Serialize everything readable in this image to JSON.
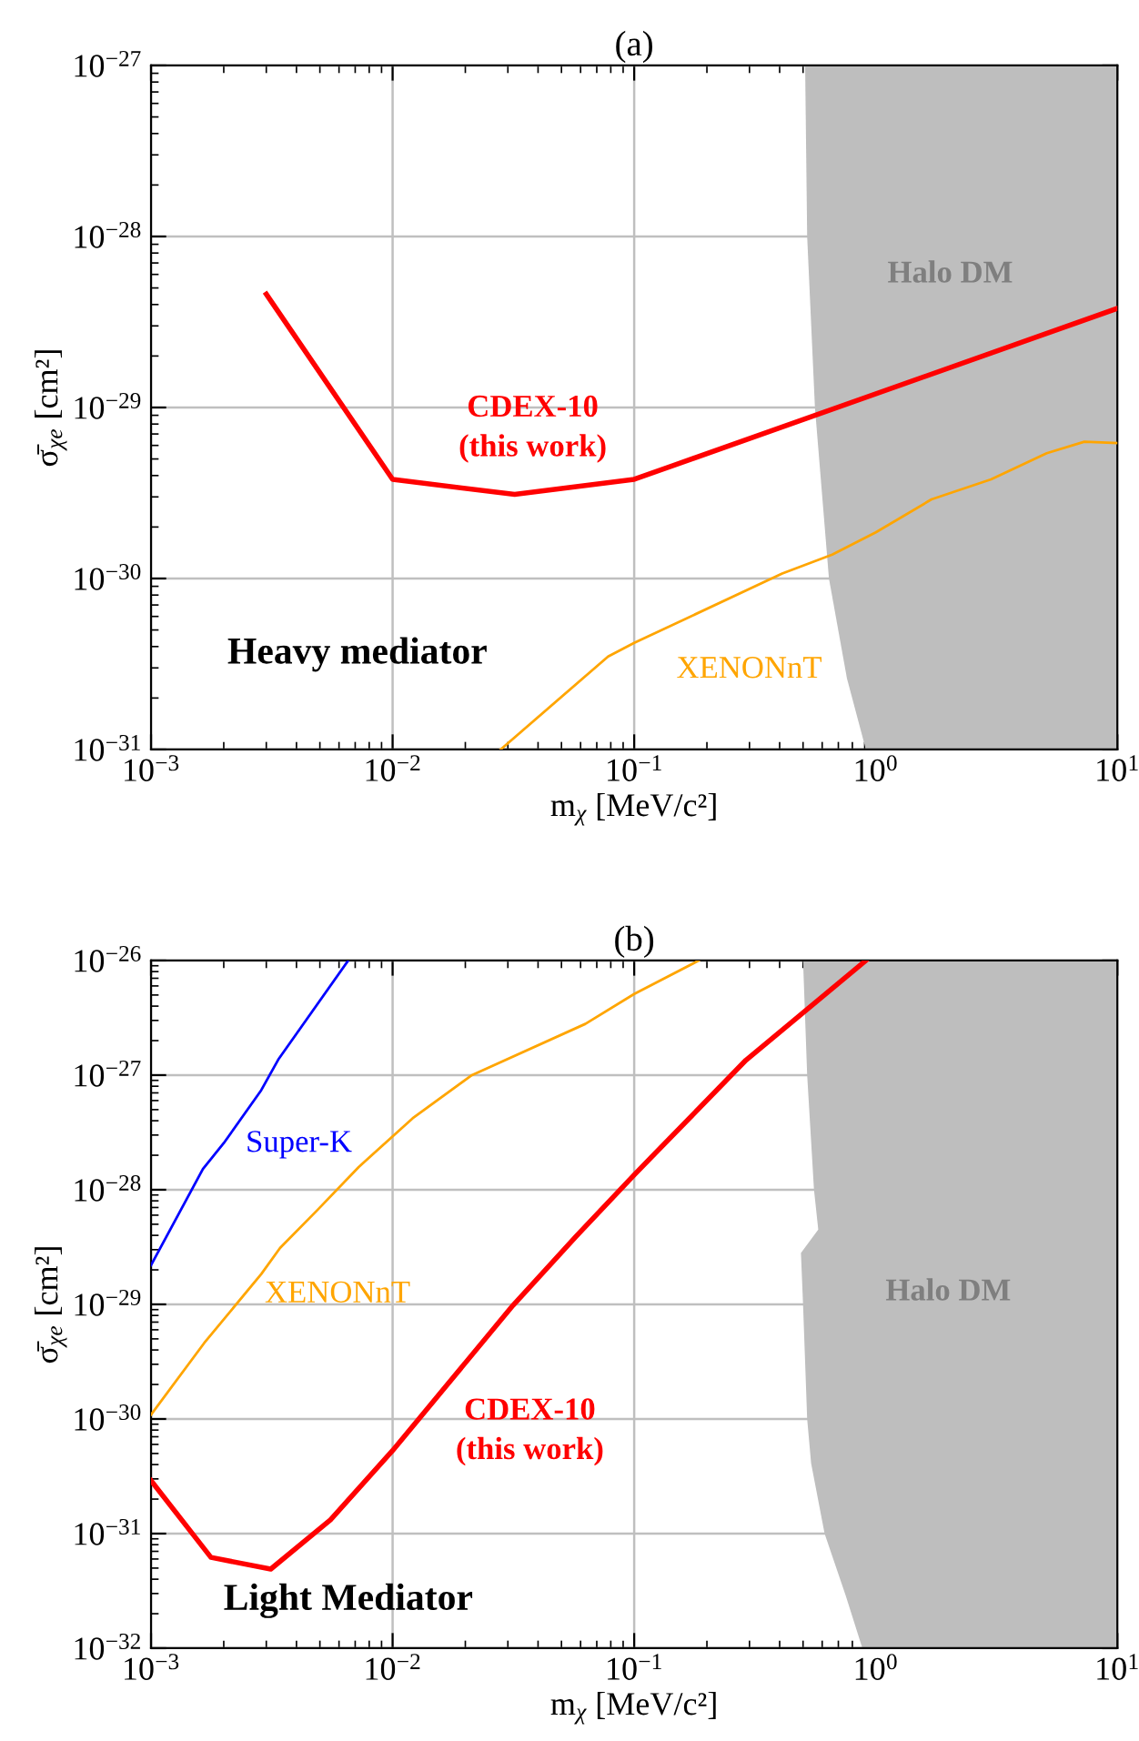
{
  "chart_data": [
    {
      "type": "line",
      "title": "(a)",
      "xlabel": "m$_{χ}$ [MeV/c²]",
      "ylabel": "σ̄$_{χe}$ [cm²]",
      "log": "xy",
      "grid": true,
      "xlim": [
        0.001,
        10
      ],
      "xticks": [
        {
          "value": 0.001,
          "label": "10$^{−3}$"
        },
        {
          "value": 0.01,
          "label": "10$^{−2}$"
        },
        {
          "value": 0.1,
          "label": "10$^{−1}$"
        },
        {
          "value": 1,
          "label": "10$^{0}$"
        },
        {
          "value": 10,
          "label": "10$^{1}$"
        }
      ],
      "ylim": [
        1e-31,
        1e-27
      ],
      "yticks": [
        {
          "value": 1e-31,
          "label": "10$^{−31}$"
        },
        {
          "value": 1e-30,
          "label": "10$^{−30}$"
        },
        {
          "value": 1e-29,
          "label": "10$^{−29}$"
        },
        {
          "value": 1e-28,
          "label": "10$^{−28}$"
        },
        {
          "value": 1e-27,
          "label": "10$^{−27}$"
        }
      ],
      "series": [
        {
          "type": "area",
          "name": "Halo DM",
          "color": "#bebebe",
          "x": [
            0.51,
            0.52,
            0.56,
            0.64,
            0.76,
            0.91,
            10,
            10
          ],
          "values": [
            1e-27,
            1e-28,
            1e-29,
            1e-30,
            2.6e-31,
            1e-31,
            1e-31,
            1e-27
          ]
        },
        {
          "name": "CDEX-10\n(this work)",
          "color": "#ff0000",
          "x": [
            0.003,
            0.01,
            0.032,
            0.1,
            10
          ],
          "values": [
            4.6e-29,
            3.8e-30,
            3.1e-30,
            3.8e-30,
            3.8e-29
          ]
        },
        {
          "name": "XENONnT",
          "color": "#ffa500",
          "x": [
            0.028,
            0.078,
            0.1,
            0.41,
            0.66,
            1.0,
            1.7,
            3.0,
            5.1,
            7.3,
            10
          ],
          "values": [
            1e-31,
            3.5e-31,
            4.2e-31,
            1.07e-30,
            1.38e-30,
            1.86e-30,
            2.9e-30,
            3.8e-30,
            5.4e-30,
            6.3e-30,
            6.2e-30
          ]
        }
      ],
      "annotations": [
        "Heavy mediator"
      ]
    },
    {
      "type": "line",
      "title": "(b)",
      "xlabel": "m$_{χ}$ [MeV/c²]",
      "ylabel": "σ̄$_{χe}$ [cm²]",
      "log": "xy",
      "grid": true,
      "xlim": [
        0.001,
        10
      ],
      "xticks": [
        {
          "value": 0.001,
          "label": "10$^{−3}$"
        },
        {
          "value": 0.01,
          "label": "10$^{−2}$"
        },
        {
          "value": 0.1,
          "label": "10$^{−1}$"
        },
        {
          "value": 1,
          "label": "10$^{0}$"
        },
        {
          "value": 10,
          "label": "10$^{1}$"
        }
      ],
      "ylim": [
        1e-32,
        1e-26
      ],
      "yticks": [
        {
          "value": 1e-32,
          "label": "10$^{−32}$"
        },
        {
          "value": 1e-31,
          "label": "10$^{−31}$"
        },
        {
          "value": 1e-30,
          "label": "10$^{−30}$"
        },
        {
          "value": 1e-29,
          "label": "10$^{−29}$"
        },
        {
          "value": 1e-28,
          "label": "10$^{−28}$"
        },
        {
          "value": 1e-27,
          "label": "10$^{−27}$"
        },
        {
          "value": 1e-26,
          "label": "10$^{−26}$"
        }
      ],
      "series": [
        {
          "type": "area",
          "name": "Halo DM",
          "color": "#bebebe",
          "x": [
            0.5,
            0.52,
            0.555,
            0.578,
            0.49,
            0.5,
            0.52,
            0.54,
            0.614,
            0.75,
            0.88,
            10,
            10
          ],
          "values": [
            1e-26,
            1e-27,
            1e-28,
            4.5e-29,
            2.8e-29,
            1e-29,
            1e-30,
            4.1e-31,
            1e-31,
            2.9e-32,
            1e-32,
            1e-32,
            1e-26
          ]
        },
        {
          "name": "CDEX-10\n(this work)",
          "color": "#ff0000",
          "x": [
            0.001,
            0.00177,
            0.00313,
            0.00553,
            0.01,
            0.0315,
            0.0574,
            0.1,
            0.29,
            0.91
          ],
          "values": [
            2.9e-31,
            6.2e-32,
            4.9e-32,
            1.32e-31,
            5.3e-31,
            9.8e-30,
            3.9e-29,
            1.35e-28,
            1.35e-27,
            1e-26
          ]
        },
        {
          "name": "XENONnT",
          "color": "#ffa500",
          "x": [
            0.001,
            0.00166,
            0.00286,
            0.00342,
            0.0049,
            0.00724,
            0.0121,
            0.0213,
            0.0628,
            0.1,
            0.185
          ],
          "values": [
            1.09e-30,
            4.6e-30,
            1.84e-29,
            3.1e-29,
            6.7e-29,
            1.58e-28,
            4.2e-28,
            1e-27,
            2.8e-27,
            5.1e-27,
            1e-26
          ]
        },
        {
          "name": "Super-K",
          "color": "#0000ff",
          "x": [
            0.001,
            0.00164,
            0.002,
            0.00286,
            0.00338,
            0.00655
          ],
          "values": [
            2.2e-29,
            1.52e-28,
            2.55e-28,
            7.4e-28,
            1.39e-27,
            1e-26
          ]
        }
      ],
      "annotations": [
        "Light Mediator"
      ]
    }
  ]
}
